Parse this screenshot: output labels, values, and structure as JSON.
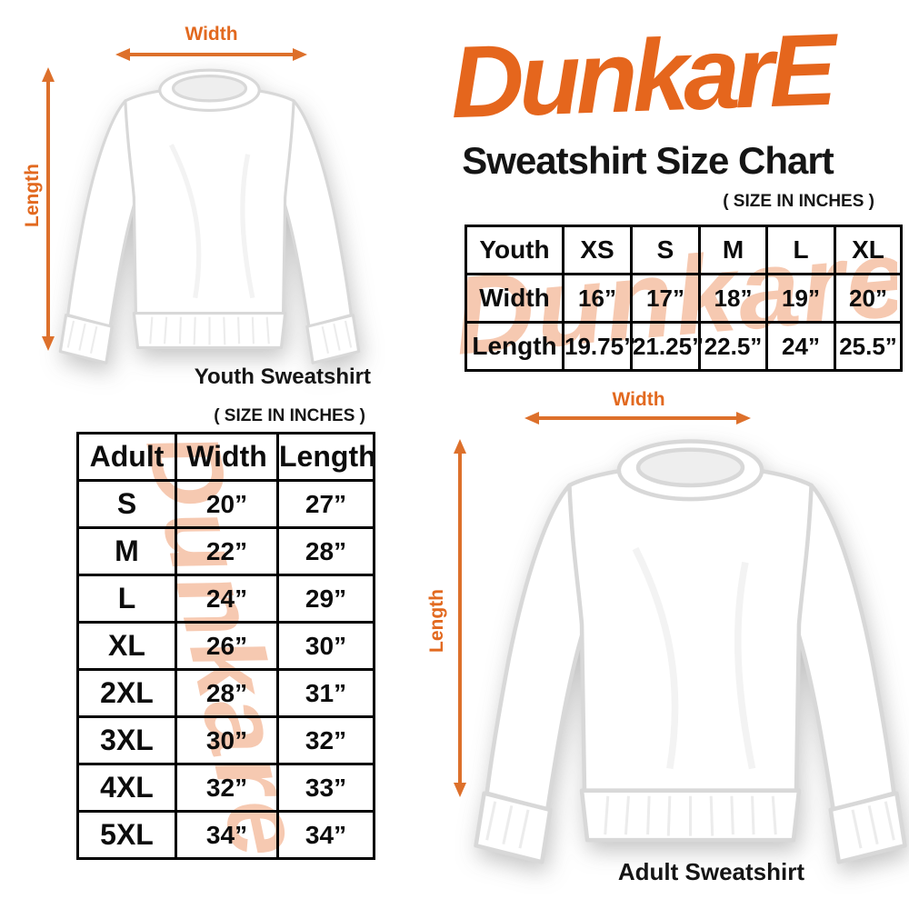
{
  "brand": {
    "logo_text": "DunkarE",
    "watermark_text": "Dunkare"
  },
  "header": {
    "title": "Sweatshirt Size Chart",
    "size_note": "( SIZE IN INCHES )"
  },
  "colors": {
    "logo_orange": "#E5661D",
    "arrow_orange": "#DD702B",
    "watermark_peach": "#F6C9B1",
    "text_black": "#111111"
  },
  "youth": {
    "caption": "Youth Sweatshirt",
    "width_label": "Width",
    "length_label": "Length",
    "table": {
      "header": [
        "Youth",
        "XS",
        "S",
        "M",
        "L",
        "XL"
      ],
      "rows": [
        [
          "Width",
          "16”",
          "17”",
          "18”",
          "19”",
          "20”"
        ],
        [
          "Length",
          "19.75”",
          "21.25”",
          "22.5”",
          "24”",
          "25.5”"
        ]
      ]
    }
  },
  "adult": {
    "caption": "Adult Sweatshirt",
    "size_note": "( SIZE IN INCHES )",
    "width_label": "Width",
    "length_label": "Length",
    "table": {
      "header": [
        "Adult",
        "Width",
        "Length"
      ],
      "rows": [
        [
          "S",
          "20”",
          "27”"
        ],
        [
          "M",
          "22”",
          "28”"
        ],
        [
          "L",
          "24”",
          "29”"
        ],
        [
          "XL",
          "26”",
          "30”"
        ],
        [
          "2XL",
          "28”",
          "31”"
        ],
        [
          "3XL",
          "30”",
          "32”"
        ],
        [
          "4XL",
          "32”",
          "33”"
        ],
        [
          "5XL",
          "34”",
          "34”"
        ]
      ]
    }
  },
  "chart_data": [
    {
      "type": "table",
      "title": "Youth Sweatshirt Size Chart (inches)",
      "columns": [
        "Youth",
        "XS",
        "S",
        "M",
        "L",
        "XL"
      ],
      "rows": [
        [
          "Width",
          16,
          17,
          18,
          19,
          20
        ],
        [
          "Length",
          19.75,
          21.25,
          22.5,
          24,
          25.5
        ]
      ]
    },
    {
      "type": "table",
      "title": "Adult Sweatshirt Size Chart (inches)",
      "columns": [
        "Adult",
        "Width",
        "Length"
      ],
      "rows": [
        [
          "S",
          20,
          27
        ],
        [
          "M",
          22,
          28
        ],
        [
          "L",
          24,
          29
        ],
        [
          "XL",
          26,
          30
        ],
        [
          "2XL",
          28,
          31
        ],
        [
          "3XL",
          30,
          32
        ],
        [
          "4XL",
          32,
          33
        ],
        [
          "5XL",
          34,
          34
        ]
      ]
    }
  ]
}
